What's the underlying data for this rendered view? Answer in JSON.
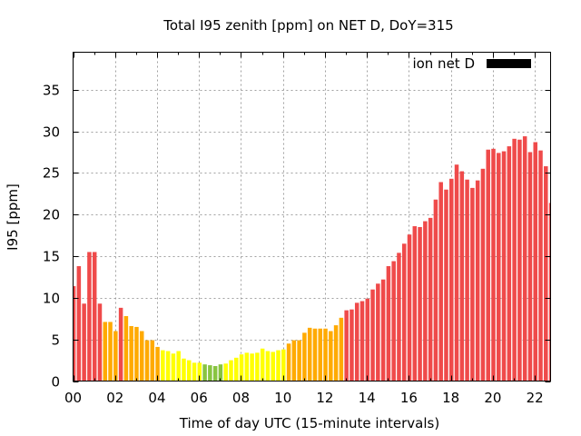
{
  "chart_data": {
    "type": "bar",
    "title": "Total I95 zenith [ppm] on NET D, DoY=315",
    "xlabel": "Time of day UTC (15-minute intervals)",
    "ylabel": "I95 [ppm]",
    "ylim": [
      0,
      39.5
    ],
    "xlim_hours": [
      0,
      22.75
    ],
    "interval_hours": 0.25,
    "grid": true,
    "legend": {
      "label": "ion net D",
      "color": "#000000",
      "placement": "top-right"
    },
    "x_ticks": [
      {
        "value": 0,
        "label": "00"
      },
      {
        "value": 2,
        "label": "02"
      },
      {
        "value": 4,
        "label": "04"
      },
      {
        "value": 6,
        "label": "06"
      },
      {
        "value": 8,
        "label": "08"
      },
      {
        "value": 10,
        "label": "10"
      },
      {
        "value": 12,
        "label": "12"
      },
      {
        "value": 14,
        "label": "14"
      },
      {
        "value": 16,
        "label": "16"
      },
      {
        "value": 18,
        "label": "18"
      },
      {
        "value": 20,
        "label": "20"
      },
      {
        "value": 22,
        "label": "22"
      }
    ],
    "y_ticks": [
      {
        "value": 0,
        "label": "0"
      },
      {
        "value": 5,
        "label": "5"
      },
      {
        "value": 10,
        "label": "10"
      },
      {
        "value": 15,
        "label": "15"
      },
      {
        "value": 20,
        "label": "20"
      },
      {
        "value": 25,
        "label": "25"
      },
      {
        "value": 30,
        "label": "30"
      },
      {
        "value": 35,
        "label": "35"
      }
    ],
    "color_scale": [
      {
        "min": 8,
        "color": "#ef4a4a"
      },
      {
        "min": 4,
        "color": "#ffaa00"
      },
      {
        "min": 2.05,
        "color": "#ffff00"
      },
      {
        "min": 0,
        "color": "#88c440"
      }
    ],
    "values": [
      11.4,
      13.8,
      9.3,
      15.5,
      15.5,
      9.3,
      7.1,
      7.1,
      6.0,
      8.8,
      7.8,
      6.6,
      6.5,
      6.0,
      4.9,
      4.9,
      4.1,
      3.7,
      3.6,
      3.3,
      3.6,
      2.7,
      2.5,
      2.2,
      2.2,
      2.0,
      1.9,
      1.8,
      2.0,
      2.1,
      2.5,
      2.8,
      3.2,
      3.4,
      3.3,
      3.4,
      3.9,
      3.6,
      3.5,
      3.7,
      3.8,
      4.5,
      4.9,
      4.9,
      5.8,
      6.4,
      6.3,
      6.3,
      6.3,
      6.0,
      6.7,
      7.6,
      8.5,
      8.6,
      9.4,
      9.6,
      9.9,
      11.0,
      11.7,
      12.2,
      13.8,
      14.4,
      15.4,
      16.5,
      17.6,
      18.6,
      18.5,
      19.2,
      19.6,
      21.8,
      23.9,
      23.0,
      24.3,
      26.0,
      25.2,
      24.2,
      23.2,
      24.1,
      25.5,
      27.8,
      27.9,
      27.4,
      27.6,
      28.2,
      29.1,
      29.0,
      29.4,
      27.5,
      28.7,
      27.7,
      25.8,
      21.4
    ]
  }
}
